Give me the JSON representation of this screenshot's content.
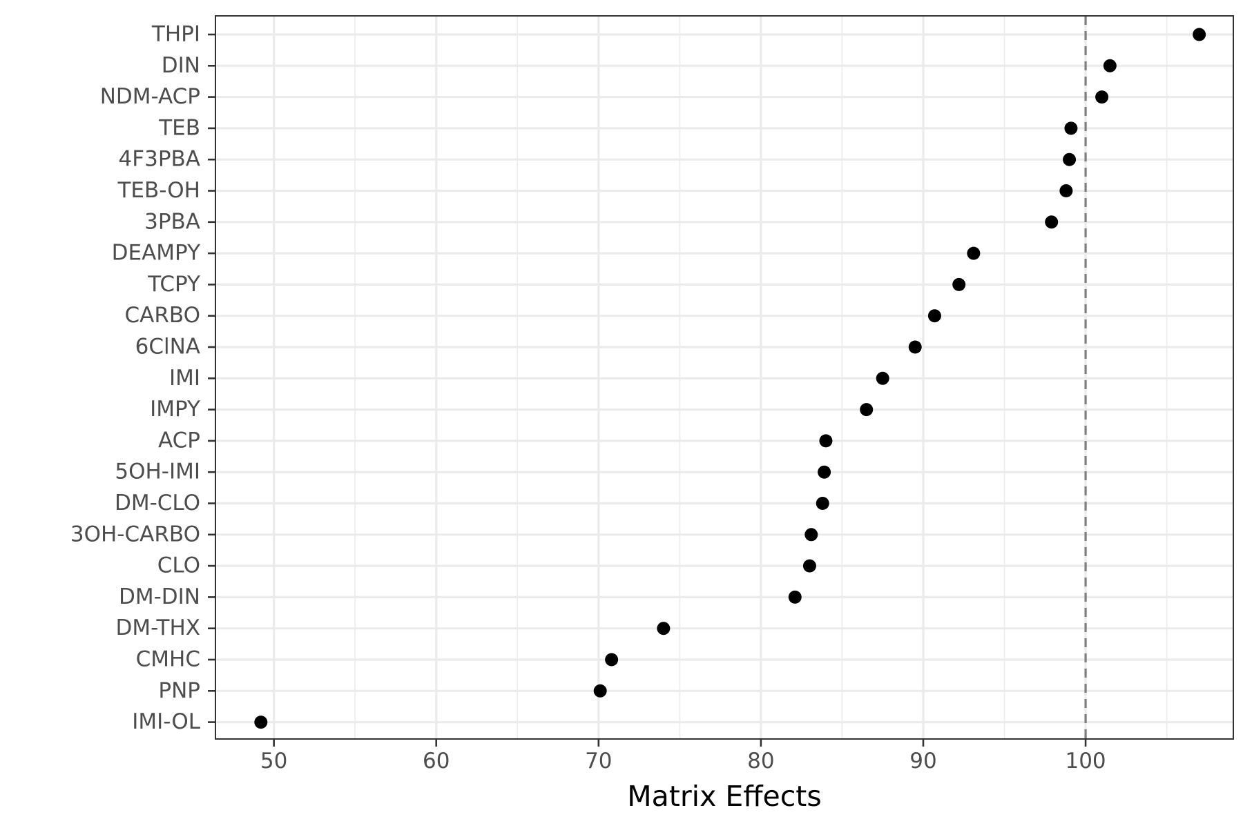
{
  "chart_data": {
    "type": "scatter",
    "title": "",
    "xlabel": "Matrix Effects",
    "ylabel": "",
    "xlim": [
      46.4,
      109.1
    ],
    "x_ticks": [
      50,
      60,
      70,
      80,
      90,
      100
    ],
    "x_tick_labels": [
      "50",
      "60",
      "70",
      "80",
      "90",
      "100"
    ],
    "x_minor_ticks": [
      55,
      65,
      75,
      85,
      95,
      105
    ],
    "reference_line": {
      "x": 100,
      "style": "dashed",
      "color": "#7f7f7f"
    },
    "grid": true,
    "legend": "none",
    "point_color": "#000000",
    "categories": [
      "THPI",
      "DIN",
      "NDM-ACP",
      "TEB",
      "4F3PBA",
      "TEB-OH",
      "3PBA",
      "DEAMPY",
      "TCPY",
      "CARBO",
      "6ClNA",
      "IMI",
      "IMPY",
      "ACP",
      "5OH-IMI",
      "DM-CLO",
      "3OH-CARBO",
      "CLO",
      "DM-DIN",
      "DM-THX",
      "CMHC",
      "PNP",
      "IMI-OL"
    ],
    "values": [
      107.0,
      101.5,
      101.0,
      99.1,
      99.0,
      98.8,
      97.9,
      93.1,
      92.2,
      90.7,
      89.5,
      87.5,
      86.5,
      84.0,
      83.9,
      83.8,
      83.1,
      83.0,
      82.1,
      74.0,
      70.8,
      70.1,
      49.2
    ]
  }
}
